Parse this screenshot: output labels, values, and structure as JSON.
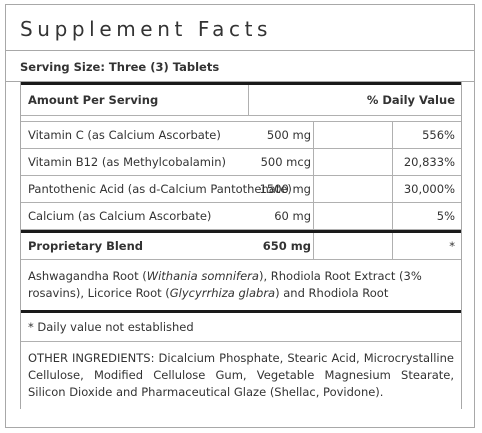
{
  "title": "Supplement Facts",
  "serving_size": "Serving Size: Three (3) Tablets",
  "header": {
    "amount_label": "Amount Per Serving",
    "dv_label": "% Daily Value"
  },
  "nutrients": [
    {
      "name": "Vitamin C (as Calcium Ascorbate)",
      "amount": "500 mg",
      "dv": "556%"
    },
    {
      "name": "Vitamin B12 (as Methylcobalamin)",
      "amount": "500 mcg",
      "dv": "20,833%"
    },
    {
      "name": "Pantothenic Acid (as d-Calcium Pantothenate)",
      "amount": "1500 mg",
      "dv": "30,000%"
    },
    {
      "name": "Calcium (as Calcium Ascorbate)",
      "amount": "60 mg",
      "dv": "5%"
    }
  ],
  "blend": {
    "name": "Proprietary Blend",
    "amount": "650 mg",
    "dv": "*",
    "d1": "Ashwagandha Root (",
    "d2": "Withania somnifera",
    "d3": "), Rhodiola Root Extract (3% rosavins), Licorice Root (",
    "d4": "Glycyrrhiza glabra",
    "d5": ") and Rhodiola Root"
  },
  "footnote": "* Daily value not established",
  "other_ingredients": "OTHER INGREDIENTS: Dicalcium Phosphate, Stearic Acid, Microcrystalline Cellulose, Modified Cellulose Gum, Vegetable Magnesium Stearate, Silicon Dioxide and Pharmaceutical Glaze (Shellac, Povidone)."
}
